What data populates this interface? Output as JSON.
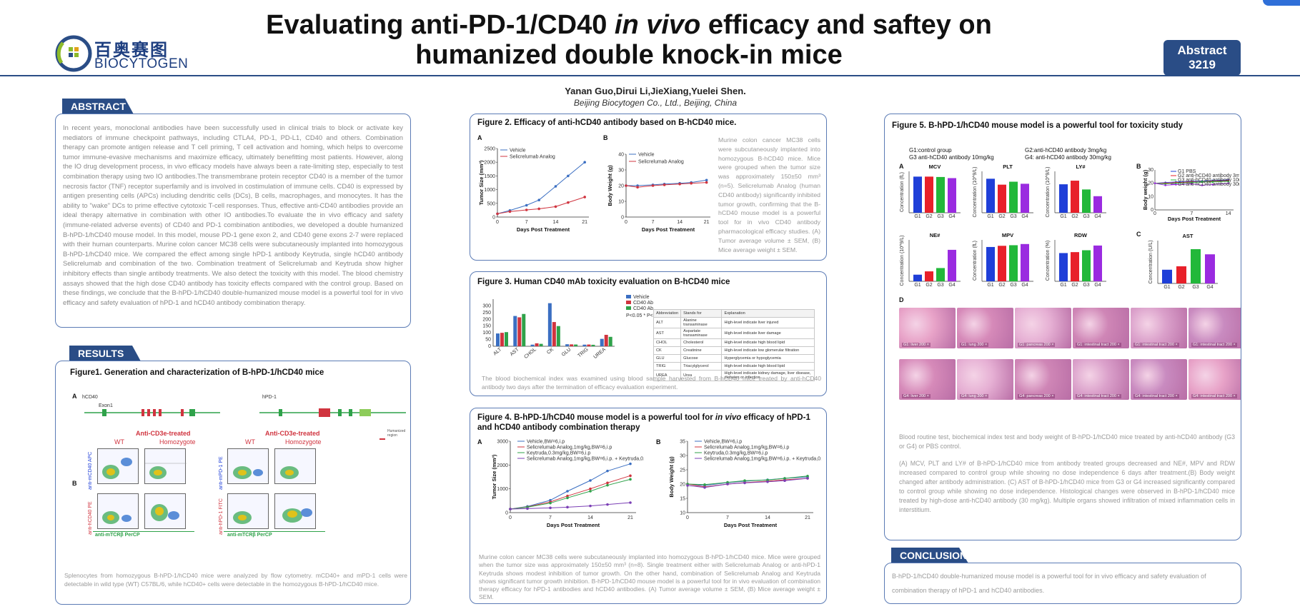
{
  "header": {
    "title_line1_pre": "Evaluating anti-PD-1/CD40 ",
    "title_line1_italic": "in vivo",
    "title_line1_post": " efficacy and saftey on",
    "title_line2": "humanized double knock-in mice",
    "abstract_badge_l1": "Abstract",
    "abstract_badge_l2": "3219",
    "logo_cn": "百奥赛图",
    "logo_en": "BIOCYTOGEN",
    "authors": "Yanan Guo,Dirui Li,JieXiang,Yuelei Shen.",
    "affiliation": "Beijing Biocytogen Co., Ltd., Beijing, China"
  },
  "sections": {
    "abstract": "ABSTRACT",
    "results": "RESULTS",
    "conclusions": "CONCLUSIONS"
  },
  "abstract": {
    "text": "In recent years, monoclonal antibodies have been successfully used in clinical trials to block or activate key mediators of immune checkpoint pathways, including CTLA4, PD-1, PD-L1, CD40 and others. Combination therapy can promote antigen release and T cell priming, T cell activation and homing, which helps to overcome tumor immune-evasive mechanisms and maximize efficacy, ultimately benefitting most patients. However, along the IO drug development process, in vivo efficacy models have always been a rate-limiting step, especially to test combination therapy using two IO antibodies.The transmembrane protein receptor CD40 is a member of the tumor necrosis factor (TNF) receptor superfamily and is involved in costimulation of immune cells. CD40 is expressed by antigen presenting cells (APCs) including dendritic cells (DCs), B cells, macrophages, and monocytes. It has the ability to \"wake\" DCs to prime effective cytotoxic T-cell responses. Thus, effective anti-CD40 antibodies provide an ideal therapy alternative in combination with other IO antibodies.To evaluate the in vivo efficacy and safety (immune-related adverse events) of CD40 and PD-1 combination antibodies, we developed a double humanized B-hPD-1/hCD40 mouse model. In this model, mouse PD-1 gene exon 2, and CD40 gene exons 2-7 were replaced with their human counterparts. Murine colon cancer MC38 cells were subcutaneously implanted into homozygous B-hPD-1/hCD40 mice. We compared the effect among single hPD-1 antibody Keytruda, single hCD40 antibody Selicrelumab and combination of the two. Combination treatment of Selicrelumab and Keytruda show higher inhibitory effects than single antibody treatments. We also detect the toxicity with this model. The blood chemistry assays showed that the high dose CD40 antibody has toxicity effects compared with the control group. Based on these findings, we conclude that the B-hPD-1/hCD40 double-humanized mouse model is a powerful tool for in vivo efficacy and safety evaluation of hPD-1 and hCD40 antibody combination therapy."
  },
  "fig1": {
    "title": "Figure1. Generation and characterization of  B-hPD-1/hCD40 mice",
    "panel_a": "A",
    "panel_b": "B",
    "gene_label_left": "hCD40",
    "gene_label_right": "hPD-1",
    "exon1": "Exon1",
    "left_group_title": "Anti-CD3e-treated",
    "right_group_title": "Anti-CD3e-treated",
    "wt": "WT",
    "homozygote": "Homozygote",
    "y_left_top": "anti-mCD40 APC",
    "y_left_bottom": "anti-hCD40 PE",
    "y_right_top": "anti-mPD-1 PE",
    "y_right_bottom": "anti-hPD-1 FITC",
    "x_label": "anti-mTCRβ PerCP",
    "legend_box": "Humanized region",
    "caption": "Splenocytes from homozygous B-hPD-1/hCD40 mice were analyzed by flow cytometry. mCD40+ and mPD-1 cells were detectable in wild type (WT) C57BL/6, while hCD40+ cells were detectable in the homozygous B-hPD-1/hCD40 mice."
  },
  "fig2": {
    "title": "Figure 2. Efficacy of anti-hCD40 antibody based on B-hCD40 mice.",
    "panel_a": "A",
    "panel_b": "B",
    "chart_a": {
      "type": "line",
      "ylabel": "Tumor Size (mm³)",
      "xlabel": "Days Post Treatment",
      "x": [
        0,
        3,
        7,
        10,
        14,
        17,
        21
      ],
      "yticks": [
        0,
        500,
        1000,
        1500,
        2000,
        2500
      ],
      "ylim": [
        0,
        2500
      ],
      "xlim": [
        0,
        22
      ],
      "series": [
        {
          "name": "Vehicle",
          "color": "#3b6fc2",
          "values": [
            120,
            240,
            430,
            620,
            1120,
            1500,
            2000
          ]
        },
        {
          "name": "Selicrelumab Analog",
          "color": "#d0343f",
          "values": [
            120,
            200,
            260,
            300,
            380,
            530,
            730
          ]
        }
      ]
    },
    "chart_b": {
      "type": "line",
      "ylabel": "Body Weight (g)",
      "xlabel": "Days Post Treatment",
      "x": [
        0,
        3,
        7,
        10,
        14,
        17,
        21
      ],
      "yticks": [
        0,
        10,
        20,
        30,
        40
      ],
      "ylim": [
        0,
        40
      ],
      "xlim": [
        0,
        22
      ],
      "series": [
        {
          "name": "Vehicle",
          "color": "#3b6fc2",
          "values": [
            20,
            20,
            20.5,
            21,
            21.5,
            22,
            23.5
          ]
        },
        {
          "name": "Selicrelumab Analog",
          "color": "#d0343f",
          "values": [
            20,
            19,
            20,
            20.5,
            21,
            21.5,
            22
          ]
        }
      ]
    },
    "side_text": "Murine colon cancer MC38 cells were subcutaneously implanted into homozygous B-hCD40 mice. Mice were grouped when the tumor size was approximately 150±50 mm³ (n=5). Selicrelumab Analog (human CD40 antibody) significantly inhibited tumor growth, confirming that the B-hCD40 mouse model is a powerful tool for in vivo CD40 antibody pharmacological efficacy studies. (A) Tumor average volume ± SEM, (B) Mice average weight ± SEM."
  },
  "fig3": {
    "title": "Figure 3. Human CD40 mAb toxicity evaluation on B-hCD40 mice",
    "chart": {
      "type": "bar",
      "categories": [
        "ALT",
        "AST",
        "CHOL",
        "CK",
        "GLU",
        "TRIG",
        "UREA"
      ],
      "yticks": [
        0,
        10,
        20,
        50,
        100,
        150,
        200,
        250,
        300
      ],
      "series": [
        {
          "name": "Vehicle",
          "color": "#3b6fc2",
          "values": [
            95,
            225,
            12,
            320,
            15,
            12,
            55
          ]
        },
        {
          "name": "CD40 Ab4",
          "color": "#d0343f",
          "values": [
            100,
            215,
            22,
            180,
            14,
            13,
            85
          ]
        },
        {
          "name": "CD40 Ab5",
          "color": "#2fa24a",
          "values": [
            105,
            240,
            18,
            150,
            13,
            11,
            70
          ]
        }
      ]
    },
    "pvals": "P<0.05 *     P<0.01 **",
    "table": {
      "headers": [
        "Abbreviation",
        "Stands for",
        "Explanation"
      ],
      "rows": [
        [
          "ALT",
          "Alanine transaminase",
          "High-level indicate liver injured"
        ],
        [
          "AST",
          "Aspartate transaminase",
          "High-level indicate liver damage"
        ],
        [
          "CHOL",
          "Cholesterol",
          "High-level indicate high blood lipid"
        ],
        [
          "CK",
          "Creatinine",
          "High-level indicate low glomerular filtration"
        ],
        [
          "GLU",
          "Glucose",
          "Hyperglycemia or hypoglycemia"
        ],
        [
          "TRIG",
          "Triacylglycerol",
          "High-level indicate high blood lipid"
        ],
        [
          "UREA",
          "Urea",
          "High-level indicate kidney damage, liver disease, diabetes or infection"
        ]
      ]
    },
    "caption": "The blood biochemical index was examined using blood sample harvested from B-hCD40 mice treated by anti-hCD40 antibody two days after the termination of efficacy evaluation experiment."
  },
  "fig4": {
    "title_pre": "Figure 4. B-hPD-1/hCD40 mouse model is a powerful tool for ",
    "title_italic": "in vivo",
    "title_post": " efficacy of hPD-1 and hCD40 antibody combination therapy",
    "panel_a": "A",
    "panel_b": "B",
    "chart_a": {
      "type": "line",
      "ylabel": "Tumor Size (mm³)",
      "xlabel": "Days Post Treatment",
      "x": [
        0,
        3,
        7,
        10,
        14,
        17,
        21
      ],
      "yticks": [
        0,
        1000,
        2000,
        3000
      ],
      "ylim": [
        0,
        3000
      ],
      "xlim": [
        0,
        22
      ],
      "series": [
        {
          "name": "Vehicle,BW=6,i.p",
          "color": "#3b6fc2",
          "values": [
            150,
            260,
            520,
            900,
            1350,
            1750,
            2050
          ]
        },
        {
          "name": "Selicrelumab Analog,1mg/kg,BW=6,i.p",
          "color": "#d0343f",
          "values": [
            150,
            240,
            450,
            700,
            1000,
            1250,
            1550
          ]
        },
        {
          "name": "Keytruda,0.3mg/kg,BW=6,i.p",
          "color": "#2fa24a",
          "values": [
            150,
            230,
            400,
            620,
            900,
            1150,
            1400
          ]
        },
        {
          "name": "Selicrelumab Analog,1mg/kg,BW=6,i.p. + Keytruda,0.3mg/kg,BW=6,i.p.",
          "color": "#7b3fb5",
          "values": [
            150,
            170,
            200,
            230,
            280,
            340,
            420
          ]
        }
      ]
    },
    "chart_b": {
      "type": "line",
      "ylabel": "Body Weight (g)",
      "xlabel": "Days Post Treatment",
      "x": [
        0,
        3,
        7,
        10,
        14,
        17,
        21
      ],
      "yticks": [
        10,
        15,
        20,
        25,
        30,
        35
      ],
      "ylim": [
        10,
        35
      ],
      "xlim": [
        0,
        22
      ],
      "series": [
        {
          "name": "Vehicle,BW=6,i.p",
          "color": "#3b6fc2",
          "values": [
            20,
            19.5,
            20.5,
            21,
            21.5,
            22,
            22.5
          ]
        },
        {
          "name": "Selicrelumab Analog,1mg/kg,BW=6,i.p",
          "color": "#d0343f",
          "values": [
            20,
            19,
            20,
            20.5,
            21,
            21.5,
            22
          ]
        },
        {
          "name": "Keytruda,0.3mg/kg,BW=6,i.p",
          "color": "#2fa24a",
          "values": [
            20,
            19.8,
            20.6,
            21.2,
            21.4,
            22,
            22.8
          ]
        },
        {
          "name": "Selicrelumab Analog,1mg/kg,BW=6,i.p. + Keytruda,0.3mg/kg,BW=6,i.p.",
          "color": "#7b3fb5",
          "values": [
            19.5,
            18.8,
            20,
            20.4,
            20.8,
            21.2,
            22
          ]
        }
      ]
    },
    "caption": "Murine colon cancer MC38 cells were subcutaneously implanted into homozygous B-hPD-1/hCD40 mice. Mice were grouped when the tumor size was approximately 150±50 mm³ (n=8). Single treatment either with Selicrelumab Analog or anti-hPD-1 Keytruda shows modest inhibition of tumor growth. On the other hand, combination of Selicrelumab Analog and Keytruda shows significant tumor growth inhibition. B-hPD-1/hCD40 mouse model is a powerful tool for in vivo evaluation of combination therapy efficacy for hPD-1 antibodies and hCD40 antibodies. (A) Tumor average volume ± SEM, (B) Mice average weight ± SEM."
  },
  "fig5": {
    "title": "Figure 5. B-hPD-1/hCD40 mouse model is a powerful tool for toxicity study",
    "groups": [
      "G1:control group",
      "G2:anti-hCD40 antibody 3mg/kg",
      "G3 anti-hCD40 antibody 10mg/kg",
      "G4: anti-hCD40 antibody 30mg/kg"
    ],
    "panel_a": "A",
    "panel_b": "B",
    "panel_c": "C",
    "panel_d": "D",
    "group_colors": [
      "#1f3fd8",
      "#e8202a",
      "#22b83a",
      "#9a2be0"
    ],
    "bars": [
      {
        "title": "MCV",
        "ylabel": "Concentration (fL)",
        "categories": [
          "G1",
          "G2",
          "G3",
          "G4"
        ],
        "values": [
          48,
          48,
          47.5,
          46
        ],
        "ylim": [
          0,
          55
        ]
      },
      {
        "title": "PLT",
        "ylabel": "Concentration (10^9/L)",
        "categories": [
          "G1",
          "G2",
          "G3",
          "G4"
        ],
        "values": [
          1150,
          950,
          1050,
          980
        ],
        "ylim": [
          0,
          1400
        ]
      },
      {
        "title": "LY#",
        "ylabel": "Concentration (10^9/L)",
        "categories": [
          "G1",
          "G2",
          "G3",
          "G4"
        ],
        "values": [
          5.5,
          6.2,
          4.5,
          3.2
        ],
        "ylim": [
          0,
          8
        ]
      },
      {
        "title": "NE#",
        "ylabel": "Concentration (10^9/L)",
        "categories": [
          "G1",
          "G2",
          "G3",
          "G4"
        ],
        "values": [
          0.4,
          0.6,
          0.8,
          1.9
        ],
        "ylim": [
          0,
          2.5
        ]
      },
      {
        "title": "MPV",
        "ylabel": "Concentration (fL)",
        "categories": [
          "G1",
          "G2",
          "G3",
          "G4"
        ],
        "values": [
          5.8,
          6.0,
          6.1,
          6.3
        ],
        "ylim": [
          0,
          7
        ]
      },
      {
        "title": "RDW",
        "ylabel": "Concentration (%)",
        "categories": [
          "G1",
          "G2",
          "G3",
          "G4"
        ],
        "values": [
          15,
          15.5,
          16.5,
          19
        ],
        "ylim": [
          0,
          22
        ]
      },
      {
        "title": "AST",
        "ylabel": "Concentration (U/L)",
        "categories": [
          "G1",
          "G2",
          "G3",
          "G4"
        ],
        "values": [
          80,
          100,
          200,
          170
        ],
        "ylim": [
          0,
          250
        ]
      }
    ],
    "weight_chart": {
      "type": "line",
      "ylabel": "Body weight (g)",
      "xlabel": "Days Post Treatment",
      "x": [
        0,
        2,
        4,
        7,
        9,
        11,
        14
      ],
      "ylim": [
        0,
        30
      ],
      "yticks": [
        0,
        10,
        20,
        30
      ],
      "series": [
        {
          "name": "G1 PBS",
          "color": "#1f3fd8",
          "values": [
            20,
            20.5,
            21,
            21.5,
            21.5,
            22,
            22.5
          ]
        },
        {
          "name": "G2 anti-hCD40 antibody 3mg/kg",
          "color": "#e8202a",
          "values": [
            20,
            20,
            20.5,
            21,
            21,
            21.5,
            22
          ]
        },
        {
          "name": "G3 anti-hCD40 antibody 10mg/kg",
          "color": "#22b83a",
          "values": [
            20,
            19.5,
            20,
            20.5,
            21,
            21,
            21.5
          ]
        },
        {
          "name": "G4 anti-hCD40 antibody 30mg/kg",
          "color": "#9a2be0",
          "values": [
            20,
            18.5,
            19,
            19.5,
            18.5,
            19,
            20
          ]
        }
      ]
    },
    "histology": [
      "G1: liver 200 ×",
      "G1: lung 200 ×",
      "G1: pancreas 200 ×",
      "G1: intestinal tract 200 ×",
      "G1: intestinal tract 200 ×",
      "G1: intestinal tract 200 ×",
      "G4: liver 200 ×",
      "G4: lung 200 ×",
      "G4: pancreas 200 ×",
      "G4: intestinal tract 200 ×",
      "G4: intestinal tract 200 ×",
      "G4: intestinal tract 200 ×"
    ],
    "caption1": "Blood routine test, biochemical index test and body weight of B-hPD-1/hCD40 mice treated by anti-hCD40 antibody (G3 or G4) or PBS control.",
    "caption2": "(A) MCV, PLT and LY# of B-hPD-1/hCD40 mice from antibody treated groups decreased and NE#, MPV and RDW increased compared to control group while showing no dose independence 6 days after treatment.(B) Body weight changed after antibody administration. (C) AST of B-hPD-1/hCD40 mice from G3 or G4 increased significantly compared to control group while showing no dose independence. Histological changes were observed in B-hPD-1/hCD40 mice treated by high-dose anti-hCD40 antibody (30 mg/kg). Multiple organs showed infiltration of mixed inflammation cells in interstitium."
  },
  "conclusions": {
    "text": "B-hPD-1/hCD40 double-humanized mouse model is a powerful tool for in vivo efficacy and safety evaluation of combination therapy of hPD-1 and hCD40 antibodies."
  }
}
